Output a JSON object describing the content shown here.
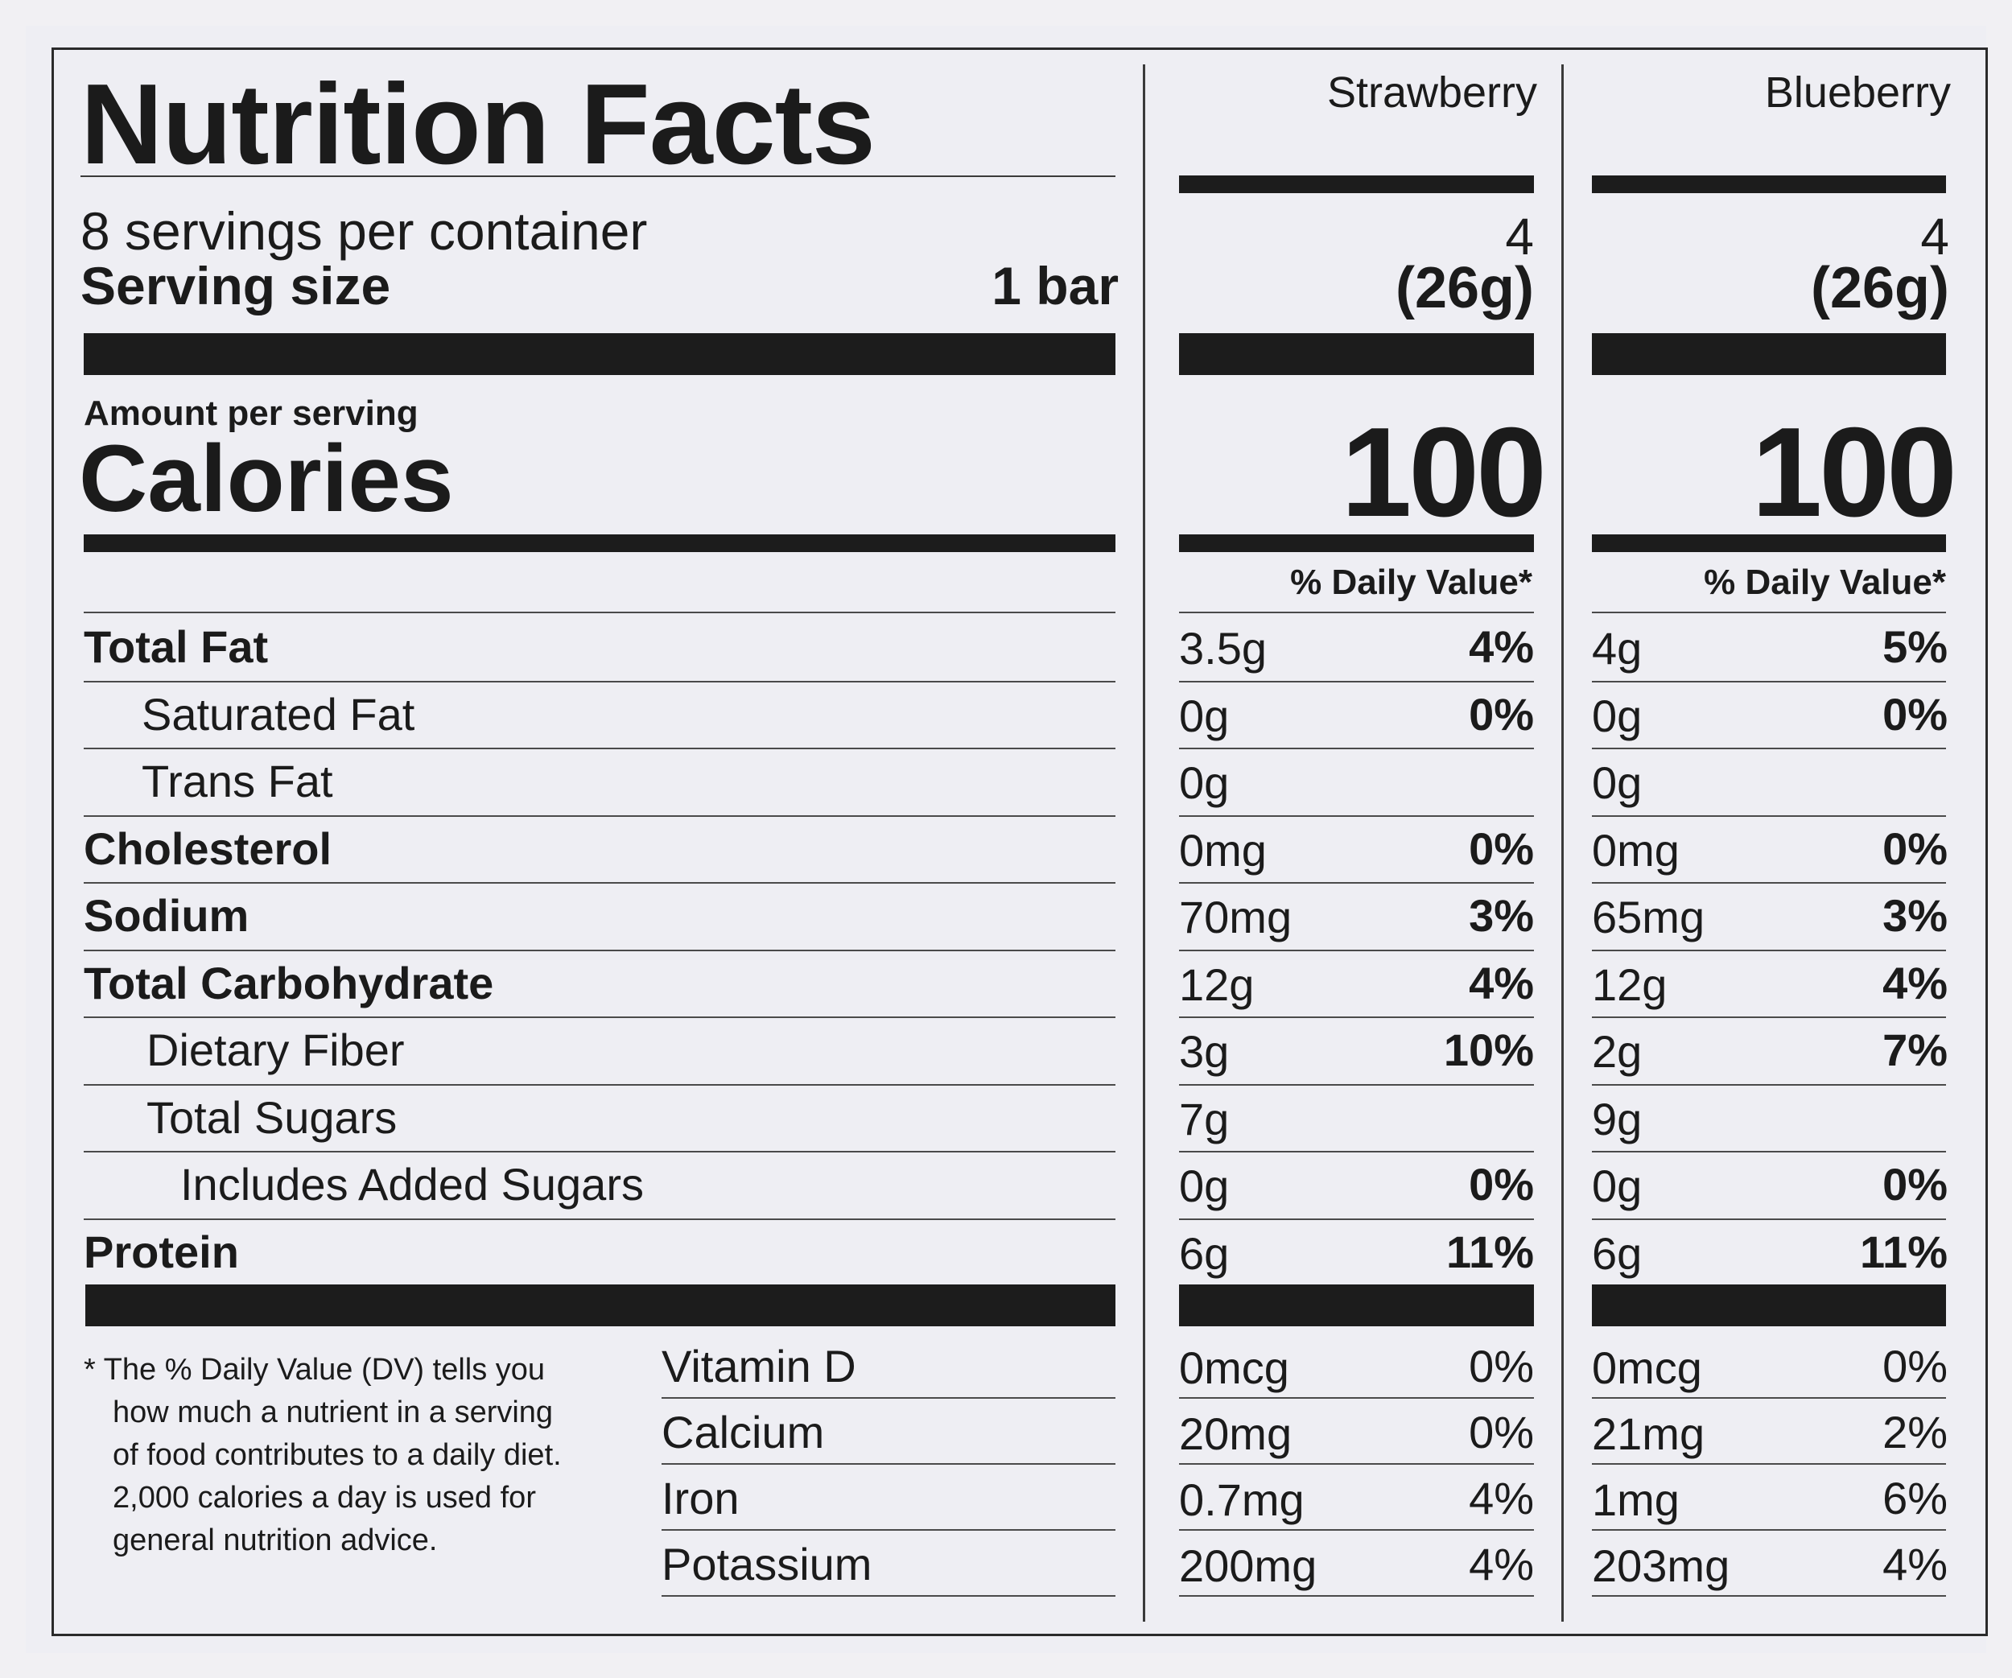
{
  "title": "Nutrition Facts",
  "servings_per_container": "8 servings per container",
  "serving_size_label": "Serving size",
  "serving_size_value": "1 bar",
  "amount_per_serving": "Amount per serving",
  "calories_label": "Calories",
  "daily_value_header": "% Daily Value*",
  "columns": [
    {
      "name": "Strawberry",
      "servings": "4",
      "serving_size": "(26g)",
      "calories": "100",
      "nutrients": [
        {
          "amount": "3.5g",
          "dv": "4%"
        },
        {
          "amount": "0g",
          "dv": "0%"
        },
        {
          "amount": "0g",
          "dv": ""
        },
        {
          "amount": "0mg",
          "dv": "0%"
        },
        {
          "amount": "70mg",
          "dv": "3%"
        },
        {
          "amount": "12g",
          "dv": "4%"
        },
        {
          "amount": "3g",
          "dv": "10%"
        },
        {
          "amount": "7g",
          "dv": ""
        },
        {
          "amount": "0g",
          "dv": "0%"
        },
        {
          "amount": "6g",
          "dv": "11%"
        }
      ],
      "vitamins": [
        {
          "amount": "0mcg",
          "dv": "0%"
        },
        {
          "amount": "20mg",
          "dv": "0%"
        },
        {
          "amount": "0.7mg",
          "dv": "4%"
        },
        {
          "amount": "200mg",
          "dv": "4%"
        }
      ]
    },
    {
      "name": "Blueberry",
      "servings": "4",
      "serving_size": "(26g)",
      "calories": "100",
      "nutrients": [
        {
          "amount": "4g",
          "dv": "5%"
        },
        {
          "amount": "0g",
          "dv": "0%"
        },
        {
          "amount": "0g",
          "dv": ""
        },
        {
          "amount": "0mg",
          "dv": "0%"
        },
        {
          "amount": "65mg",
          "dv": "3%"
        },
        {
          "amount": "12g",
          "dv": "4%"
        },
        {
          "amount": "2g",
          "dv": "7%"
        },
        {
          "amount": "9g",
          "dv": ""
        },
        {
          "amount": "0g",
          "dv": "0%"
        },
        {
          "amount": "6g",
          "dv": "11%"
        }
      ],
      "vitamins": [
        {
          "amount": "0mcg",
          "dv": "0%"
        },
        {
          "amount": "21mg",
          "dv": "2%"
        },
        {
          "amount": "1mg",
          "dv": "6%"
        },
        {
          "amount": "203mg",
          "dv": "4%"
        }
      ]
    }
  ],
  "nutrient_labels": [
    "Total Fat",
    "Saturated Fat",
    "Trans Fat",
    "Cholesterol",
    "Sodium",
    "Total Carbohydrate",
    "Dietary Fiber",
    "Total Sugars",
    "Includes Added Sugars",
    "Protein"
  ],
  "vitamin_labels": [
    "Vitamin D",
    "Calcium",
    "Iron",
    "Potassium"
  ],
  "footnote_lines": [
    "* The % Daily Value (DV) tells you",
    "how much a nutrient in a serving",
    "of food contributes to a daily diet.",
    "2,000 calories a day is used for",
    "general nutrition advice."
  ]
}
